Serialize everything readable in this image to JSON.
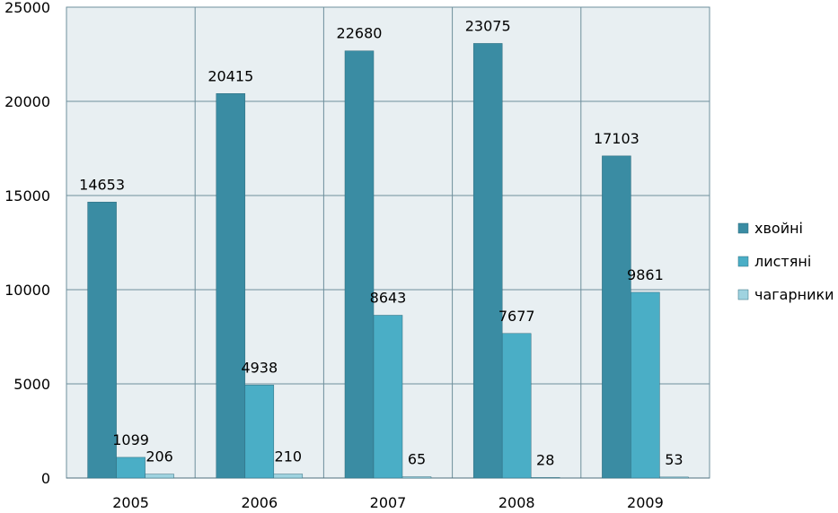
{
  "chart_data": {
    "type": "bar",
    "categories": [
      "2005",
      "2006",
      "2007",
      "2008",
      "2009"
    ],
    "series": [
      {
        "name": "хвойні",
        "values": [
          14653,
          20415,
          22680,
          23075,
          17103
        ],
        "color": "#3a8ca3"
      },
      {
        "name": "листяні",
        "values": [
          1099,
          4938,
          8643,
          7677,
          9861
        ],
        "color": "#4aaec6"
      },
      {
        "name": "чагарники",
        "values": [
          206,
          210,
          65,
          28,
          53
        ],
        "color": "#9fd3e0"
      }
    ],
    "ylim": [
      0,
      25000
    ],
    "yticks": [
      "0",
      "5000",
      "10000",
      "15000",
      "20000",
      "25000"
    ],
    "grid": true,
    "legend": "right",
    "plot_background": "#e8eff2",
    "gridline_color": "#6e8f9c"
  }
}
